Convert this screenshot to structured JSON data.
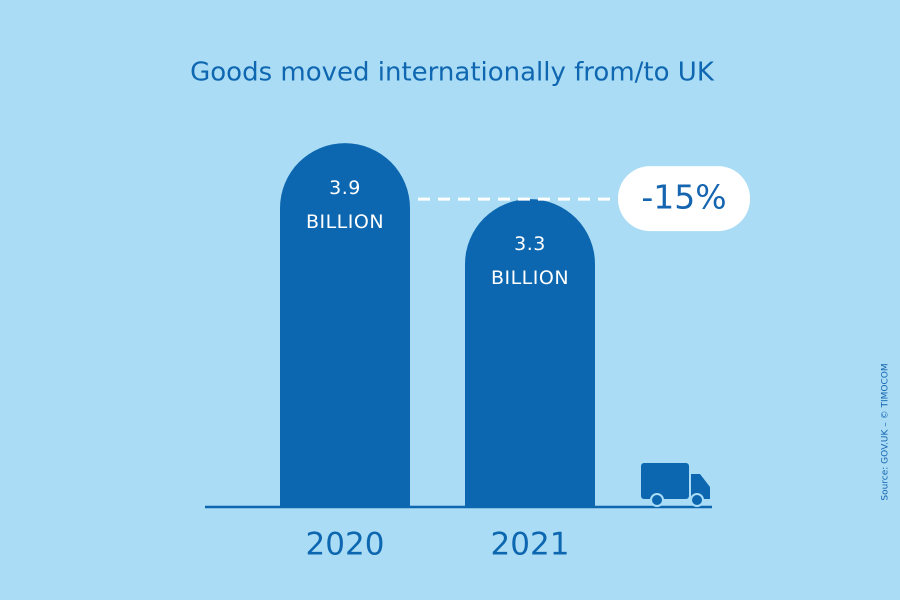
{
  "chart_data": {
    "type": "bar",
    "title": "Goods moved internationally from/to UK",
    "categories": [
      "2020",
      "2021"
    ],
    "values": [
      3.9,
      3.3
    ],
    "value_labels": [
      "3.9 BILLION",
      "3.3 BILLION"
    ],
    "color": "#0d67b0",
    "annotation": "-15%",
    "source": "Source: GOV.UK – © TIMOCOM"
  }
}
